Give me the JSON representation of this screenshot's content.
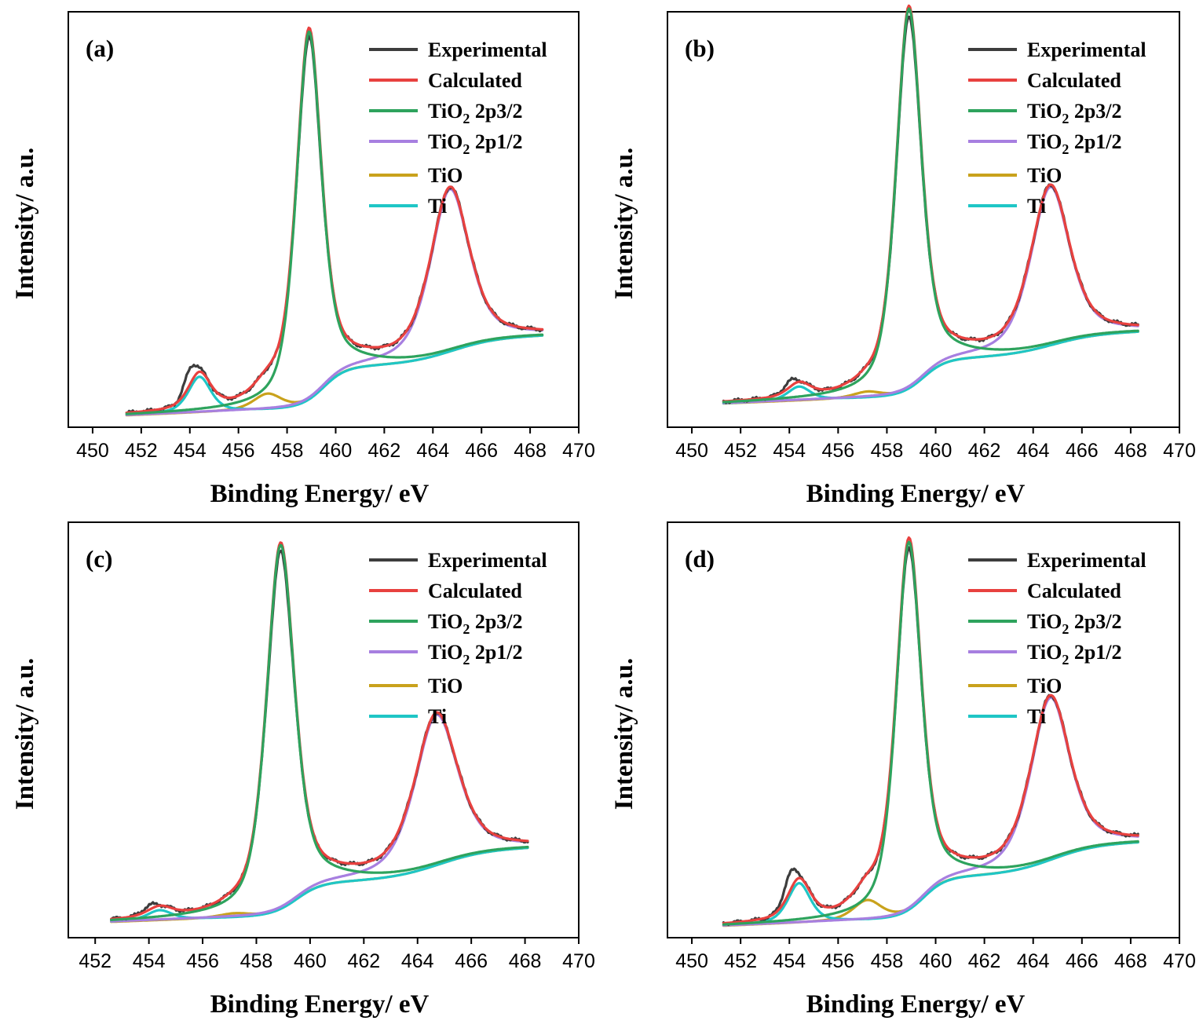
{
  "legend_position": "top-right",
  "colors": {
    "Experimental": "#3d3d3d",
    "Calculated": "#e8413f",
    "TiO2 2p3/2": "#2ea35d",
    "TiO2 2p1/2": "#a77fe0",
    "TiO": "#c9a21c",
    "Ti": "#1fc6c6"
  },
  "chart_data": [
    {
      "type": "line",
      "panel_label": "(a)",
      "xlabel": "Binding Energy/ eV",
      "ylabel": "Intensity/ a.u.",
      "xlim": [
        449,
        470
      ],
      "xticks": [
        450,
        452,
        454,
        456,
        458,
        460,
        462,
        464,
        466,
        468,
        470
      ],
      "x_range": [
        451.4,
        468.5
      ],
      "y_scale": "arbitrary units (0-100)",
      "ylim": [
        0,
        105
      ],
      "grid": false,
      "legend": [
        "Experimental",
        "Calculated",
        "TiO<sub>2</sub> 2p3/2",
        "TiO<sub>2</sub> 2p1/2",
        "TiO",
        "Ti"
      ],
      "peaks": [
        {
          "component": "TiO2 2p3/2",
          "position": 458.9,
          "height": 93
        },
        {
          "component": "TiO2 2p1/2",
          "position": 464.7,
          "height": 41
        },
        {
          "component": "TiO",
          "position": 457.2,
          "height": 4
        },
        {
          "component": "Ti",
          "position": 454.4,
          "height": 9
        }
      ],
      "background": {
        "start": 3,
        "step1": 10,
        "step2": 6
      }
    },
    {
      "type": "line",
      "panel_label": "(b)",
      "xlabel": "Binding Energy/ eV",
      "ylabel": "Intensity/ a.u.",
      "xlim": [
        449,
        470
      ],
      "xticks": [
        450,
        452,
        454,
        456,
        458,
        460,
        462,
        464,
        466,
        468,
        470
      ],
      "x_range": [
        451.3,
        468.3
      ],
      "y_scale": "arbitrary units (0-100)",
      "ylim": [
        0,
        105
      ],
      "grid": false,
      "legend": [
        "Experimental",
        "Calculated",
        "TiO<sub>2</sub> 2p3/2",
        "TiO<sub>2</sub> 2p1/2",
        "TiO",
        "Ti"
      ],
      "peaks": [
        {
          "component": "TiO2 2p3/2",
          "position": 458.9,
          "height": 96
        },
        {
          "component": "TiO2 2p1/2",
          "position": 464.7,
          "height": 40
        },
        {
          "component": "TiO",
          "position": 457.2,
          "height": 1.5
        },
        {
          "component": "Ti",
          "position": 454.4,
          "height": 3.5
        }
      ],
      "background": {
        "start": 6,
        "step1": 9,
        "step2": 5
      }
    },
    {
      "type": "line",
      "panel_label": "(c)",
      "xlabel": "Binding Energy/ eV",
      "ylabel": "Intensity/ a.u.",
      "xlim": [
        451,
        470
      ],
      "xticks": [
        452,
        454,
        456,
        458,
        460,
        462,
        464,
        466,
        468,
        470
      ],
      "x_range": [
        452.6,
        468.1
      ],
      "y_scale": "arbitrary units (0-100)",
      "ylim": [
        0,
        105
      ],
      "grid": false,
      "legend": [
        "Experimental",
        "Calculated",
        "TiO<sub>2</sub> 2p3/2",
        "TiO<sub>2</sub> 2p1/2",
        "TiO",
        "Ti"
      ],
      "peaks": [
        {
          "component": "TiO2 2p3/2",
          "position": 458.9,
          "height": 92
        },
        {
          "component": "TiO2 2p1/2",
          "position": 464.7,
          "height": 38
        },
        {
          "component": "TiO",
          "position": 457.2,
          "height": 1
        },
        {
          "component": "Ti",
          "position": 454.4,
          "height": 2.5
        }
      ],
      "background": {
        "start": 4,
        "step1": 8,
        "step2": 7
      }
    },
    {
      "type": "line",
      "panel_label": "(d)",
      "xlabel": "Binding Energy/ eV",
      "ylabel": "Intensity/ a.u.",
      "xlim": [
        449,
        470
      ],
      "xticks": [
        450,
        452,
        454,
        456,
        458,
        460,
        462,
        464,
        466,
        468,
        470
      ],
      "x_range": [
        451.3,
        468.3
      ],
      "y_scale": "arbitrary units (0-100)",
      "ylim": [
        0,
        105
      ],
      "grid": false,
      "legend": [
        "Experimental",
        "Calculated",
        "TiO<sub>2</sub> 2p3/2",
        "TiO<sub>2</sub> 2p1/2",
        "TiO",
        "Ti"
      ],
      "peaks": [
        {
          "component": "TiO2 2p3/2",
          "position": 458.9,
          "height": 93
        },
        {
          "component": "TiO2 2p1/2",
          "position": 464.7,
          "height": 41
        },
        {
          "component": "TiO",
          "position": 457.2,
          "height": 5
        },
        {
          "component": "Ti",
          "position": 454.4,
          "height": 10
        }
      ],
      "background": {
        "start": 3,
        "step1": 10,
        "step2": 7
      }
    }
  ]
}
